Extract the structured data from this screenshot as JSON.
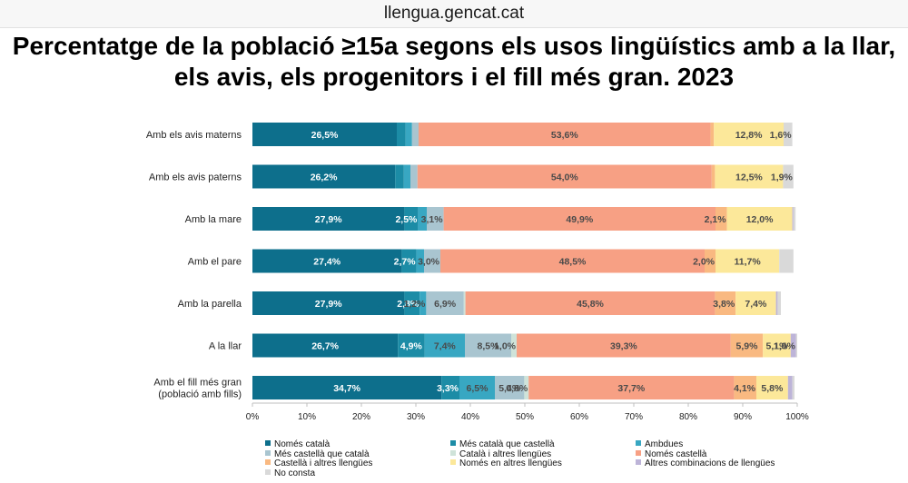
{
  "header": {
    "site": "llengua.gencat.cat"
  },
  "chart_data": {
    "type": "bar",
    "orientation": "horizontal-stacked-100",
    "title": "Percentatge de la població ≥15a segons els usos lingüístics amb a la llar, els avis, els progenitors i el fill més gran. 2023",
    "xlim": [
      0,
      100
    ],
    "x_ticks": [
      "0%",
      "10%",
      "20%",
      "30%",
      "40%",
      "50%",
      "60%",
      "70%",
      "80%",
      "90%",
      "100%"
    ],
    "legend_position": "bottom",
    "categories": [
      "Amb els avis materns",
      "Amb els avis paterns",
      "Amb la mare",
      "Amb el pare",
      "Amb la parella",
      "A la llar",
      "Amb el fill més gran (població amb fills)"
    ],
    "category_lines": [
      [
        "Amb els avis materns"
      ],
      [
        "Amb els avis paterns"
      ],
      [
        "Amb la mare"
      ],
      [
        "Amb el pare"
      ],
      [
        "Amb la parella"
      ],
      [
        "A la llar"
      ],
      [
        "Amb el fill més gran",
        "(població amb fills)"
      ]
    ],
    "series": [
      {
        "name": "Només català",
        "color": "#0d6f8c",
        "values": [
          26.5,
          26.2,
          27.9,
          27.4,
          27.9,
          26.7,
          34.7
        ],
        "labels": [
          "26,5%",
          "26,2%",
          "27,9%",
          "27,4%",
          "27,9%",
          "26,7%",
          "34,7%"
        ]
      },
      {
        "name": "Més català que castellà",
        "color": "#1c8ca6",
        "values": [
          1.6,
          1.6,
          2.5,
          2.7,
          2.8,
          4.9,
          3.3
        ],
        "labels": [
          "",
          "",
          "2,5%",
          "2,7%",
          "2,8%",
          "4,9%",
          "3,3%"
        ]
      },
      {
        "name": "Ambdues",
        "color": "#38a7c2",
        "values": [
          1.2,
          1.2,
          1.6,
          1.4,
          1.2,
          7.4,
          6.5
        ],
        "labels": [
          "",
          "",
          "",
          "",
          "1,2%",
          "7,4%",
          "6,5%"
        ]
      },
      {
        "name": "Més castellà que català",
        "color": "#a9c5d0",
        "values": [
          1.2,
          1.3,
          3.1,
          3.0,
          6.9,
          8.5,
          5.4
        ],
        "labels": [
          "",
          "",
          "3,1%",
          "3,0%",
          "6,9%",
          "8,5%",
          "5,4%"
        ]
      },
      {
        "name": "Català i altres llengües",
        "color": "#cfe3d9",
        "values": [
          0.0,
          0.0,
          0.0,
          0.0,
          0.3,
          1.0,
          0.8
        ],
        "labels": [
          "",
          "",
          "",
          "",
          "",
          "1,0%",
          "0,8%"
        ]
      },
      {
        "name": "Només castellà",
        "color": "#f7a084",
        "values": [
          53.6,
          54.0,
          49.9,
          48.5,
          45.8,
          39.3,
          37.7
        ],
        "labels": [
          "53,6%",
          "54,0%",
          "49,9%",
          "48,5%",
          "45,8%",
          "39,3%",
          "37,7%"
        ]
      },
      {
        "name": "Castellà i altres llengües",
        "color": "#f9b981",
        "values": [
          0.6,
          0.6,
          2.1,
          2.0,
          3.8,
          5.9,
          4.1
        ],
        "labels": [
          "",
          "",
          "2,1%",
          "2,0%",
          "3,8%",
          "5,9%",
          "4,1%"
        ]
      },
      {
        "name": "Només en altres llengües",
        "color": "#fce89a",
        "values": [
          12.8,
          12.5,
          12.0,
          11.7,
          7.4,
          5.1,
          5.8
        ],
        "labels": [
          "12,8%",
          "12,5%",
          "12,0%",
          "11,7%",
          "7,4%",
          "5,1%",
          "5,8%"
        ]
      },
      {
        "name": "Altres combinacions de llengües",
        "color": "#bdb4d8",
        "values": [
          0.0,
          0.0,
          0.2,
          0.0,
          0.3,
          1.0,
          0.8
        ],
        "labels": [
          "",
          "",
          "",
          "",
          "",
          "1,0%",
          ""
        ]
      },
      {
        "name": "No consta",
        "color": "#d9d9d9",
        "values": [
          1.6,
          1.9,
          0.4,
          2.6,
          0.6,
          0.2,
          0.4
        ],
        "labels": [
          "1,6%",
          "1,9%",
          "",
          "",
          "",
          "",
          ""
        ]
      }
    ]
  }
}
